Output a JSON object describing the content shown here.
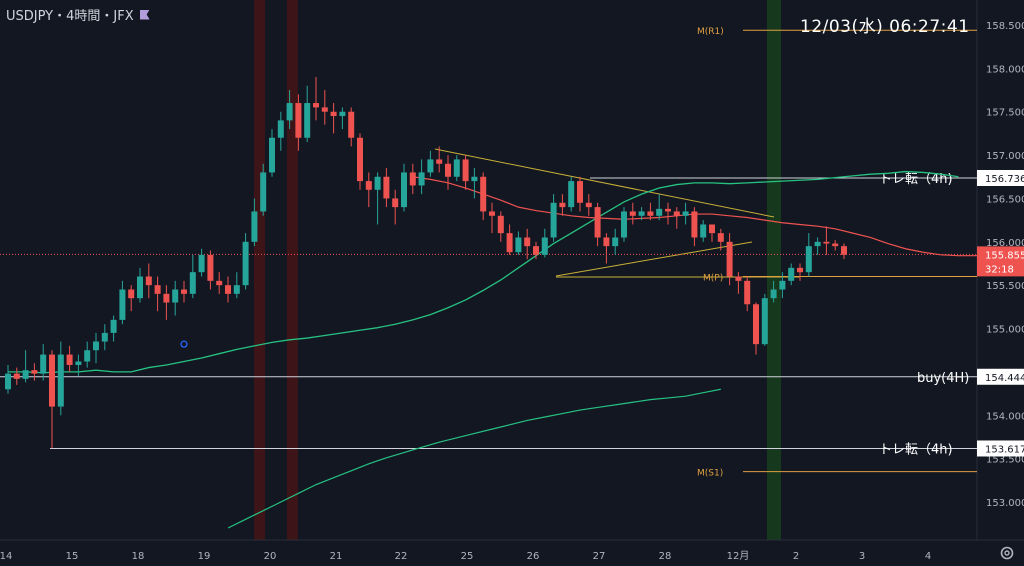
{
  "header": {
    "symbol_line": "USDJPY・4時間・JFX"
  },
  "clock": "12/03(水)   06:27:41",
  "colors": {
    "up": "#26a69a",
    "down": "#ef5350",
    "bg": "#131722",
    "grid": "#2a2e39",
    "text": "#b2b5be"
  },
  "chart_data": {
    "type": "candlestick",
    "y_ticks": [
      "158.500",
      "158.000",
      "157.500",
      "157.000",
      "156.500",
      "156.000",
      "155.500",
      "155.000",
      "154.500",
      "154.000",
      "153.500",
      "153.000"
    ],
    "x_ticks": [
      "14",
      "15",
      "18",
      "19",
      "20",
      "21",
      "22",
      "25",
      "26",
      "27",
      "28",
      "12月",
      "2",
      "3",
      "4"
    ],
    "ylim": [
      152.7,
      158.75
    ],
    "candles": [
      [
        154.3,
        154.48,
        154.25,
        154.58
      ],
      [
        154.48,
        154.42,
        154.35,
        154.55
      ],
      [
        154.42,
        154.52,
        154.38,
        154.75
      ],
      [
        154.52,
        154.48,
        154.4,
        154.6
      ],
      [
        154.48,
        154.7,
        154.4,
        154.82
      ],
      [
        154.7,
        154.1,
        153.62,
        154.75
      ],
      [
        154.1,
        154.7,
        154.0,
        154.85
      ],
      [
        154.7,
        154.58,
        154.5,
        154.8
      ],
      [
        154.58,
        154.62,
        154.45,
        154.7
      ],
      [
        154.62,
        154.75,
        154.55,
        154.85
      ],
      [
        154.75,
        154.85,
        154.6,
        154.95
      ],
      [
        154.85,
        154.95,
        154.75,
        155.05
      ],
      [
        154.95,
        155.1,
        154.85,
        155.15
      ],
      [
        155.1,
        155.45,
        155.05,
        155.55
      ],
      [
        155.45,
        155.35,
        155.2,
        155.5
      ],
      [
        155.35,
        155.6,
        155.3,
        155.7
      ],
      [
        155.6,
        155.5,
        155.35,
        155.75
      ],
      [
        155.5,
        155.4,
        155.2,
        155.6
      ],
      [
        155.4,
        155.3,
        155.1,
        155.5
      ],
      [
        155.3,
        155.45,
        155.15,
        155.55
      ],
      [
        155.45,
        155.4,
        155.3,
        155.55
      ],
      [
        155.4,
        155.65,
        155.35,
        155.85
      ],
      [
        155.65,
        155.85,
        155.6,
        155.92
      ],
      [
        155.85,
        155.55,
        155.45,
        155.9
      ],
      [
        155.55,
        155.5,
        155.4,
        155.65
      ],
      [
        155.5,
        155.4,
        155.3,
        155.6
      ],
      [
        155.4,
        155.5,
        155.35,
        155.65
      ],
      [
        155.5,
        156.0,
        155.45,
        156.1
      ],
      [
        156.0,
        156.35,
        155.95,
        156.5
      ],
      [
        156.35,
        156.8,
        156.3,
        156.9
      ],
      [
        156.8,
        157.2,
        156.75,
        157.3
      ],
      [
        157.2,
        157.4,
        157.05,
        157.5
      ],
      [
        157.4,
        157.6,
        157.3,
        157.75
      ],
      [
        157.6,
        157.2,
        157.05,
        157.7
      ],
      [
        157.2,
        157.6,
        157.15,
        157.8
      ],
      [
        157.6,
        157.55,
        157.4,
        157.9
      ],
      [
        157.55,
        157.5,
        157.35,
        157.75
      ],
      [
        157.5,
        157.45,
        157.25,
        157.6
      ],
      [
        157.45,
        157.5,
        157.3,
        157.55
      ],
      [
        157.5,
        157.2,
        157.1,
        157.55
      ],
      [
        157.2,
        156.7,
        156.6,
        157.25
      ],
      [
        156.7,
        156.6,
        156.4,
        156.8
      ],
      [
        156.6,
        156.75,
        156.2,
        156.8
      ],
      [
        156.75,
        156.5,
        156.4,
        156.85
      ],
      [
        156.5,
        156.4,
        156.2,
        156.6
      ],
      [
        156.4,
        156.8,
        156.35,
        156.9
      ],
      [
        156.8,
        156.65,
        156.55,
        156.9
      ],
      [
        156.65,
        156.8,
        156.55,
        156.95
      ],
      [
        156.8,
        156.95,
        156.75,
        157.05
      ],
      [
        156.95,
        156.9,
        156.8,
        157.1
      ],
      [
        156.9,
        156.75,
        156.6,
        157.0
      ],
      [
        156.75,
        156.95,
        156.7,
        157.0
      ],
      [
        156.95,
        156.7,
        156.6,
        157.0
      ],
      [
        156.7,
        156.75,
        156.5,
        156.85
      ],
      [
        156.75,
        156.35,
        156.25,
        156.8
      ],
      [
        156.35,
        156.3,
        156.1,
        156.45
      ],
      [
        156.3,
        156.1,
        156.0,
        156.35
      ],
      [
        156.1,
        155.88,
        155.85,
        156.2
      ],
      [
        155.88,
        156.05,
        155.85,
        156.12
      ],
      [
        156.05,
        155.95,
        155.8,
        156.15
      ],
      [
        155.95,
        155.85,
        155.8,
        156.0
      ],
      [
        155.85,
        156.05,
        155.82,
        156.15
      ],
      [
        156.05,
        156.45,
        156.0,
        156.55
      ],
      [
        156.45,
        156.4,
        156.3,
        156.55
      ],
      [
        156.4,
        156.7,
        156.35,
        156.75
      ],
      [
        156.7,
        156.45,
        156.35,
        156.75
      ],
      [
        156.45,
        156.4,
        156.3,
        156.55
      ],
      [
        156.4,
        156.05,
        155.95,
        156.45
      ],
      [
        156.05,
        155.95,
        155.75,
        156.1
      ],
      [
        155.95,
        156.05,
        155.85,
        156.15
      ],
      [
        156.05,
        156.35,
        156.0,
        156.4
      ],
      [
        156.35,
        156.3,
        156.2,
        156.45
      ],
      [
        156.3,
        156.35,
        156.25,
        156.4
      ],
      [
        156.35,
        156.3,
        156.25,
        156.45
      ],
      [
        156.3,
        156.38,
        156.25,
        156.55
      ],
      [
        156.38,
        156.35,
        156.2,
        156.45
      ],
      [
        156.35,
        156.3,
        156.15,
        156.4
      ],
      [
        156.3,
        156.35,
        156.2,
        156.45
      ],
      [
        156.35,
        156.05,
        155.95,
        156.4
      ],
      [
        156.05,
        156.2,
        156.0,
        156.25
      ],
      [
        156.2,
        156.1,
        156.0,
        156.2
      ],
      [
        156.1,
        156.0,
        155.9,
        156.15
      ],
      [
        156.0,
        155.6,
        155.5,
        156.1
      ],
      [
        155.6,
        155.55,
        155.4,
        155.65
      ],
      [
        155.55,
        155.28,
        155.2,
        155.6
      ],
      [
        155.28,
        154.82,
        154.7,
        155.3
      ],
      [
        154.82,
        155.35,
        154.8,
        155.4
      ],
      [
        155.35,
        155.45,
        155.3,
        155.55
      ],
      [
        155.45,
        155.55,
        155.35,
        155.65
      ],
      [
        155.55,
        155.7,
        155.5,
        155.75
      ],
      [
        155.7,
        155.65,
        155.55,
        155.75
      ],
      [
        155.65,
        155.95,
        155.6,
        156.1
      ],
      [
        155.95,
        156.0,
        155.85,
        156.05
      ],
      [
        156.0,
        155.98,
        155.85,
        156.18
      ],
      [
        155.98,
        155.95,
        155.9,
        156.02
      ],
      [
        155.95,
        155.85,
        155.8,
        155.98
      ]
    ],
    "ema_short": [
      154.5,
      154.5,
      154.49,
      154.5,
      154.5,
      154.52,
      154.5,
      154.5,
      154.55,
      154.58,
      154.62,
      154.66,
      154.71,
      154.76,
      154.8,
      154.84,
      154.87,
      154.89,
      154.92,
      154.95,
      154.98,
      155.01,
      155.05,
      155.1,
      155.16,
      155.24,
      155.33,
      155.44,
      155.56,
      155.7,
      155.84,
      155.98,
      156.1,
      156.22,
      156.34,
      156.46,
      156.55,
      156.62,
      156.66,
      156.68,
      156.68,
      156.67,
      156.68,
      156.69,
      156.7,
      156.71,
      156.72,
      156.74,
      156.76,
      156.78,
      156.79,
      156.81,
      156.8,
      156.78,
      156.75
    ],
    "ema_red": [
      156.75,
      156.72,
      156.68,
      156.62,
      156.55,
      156.48,
      156.4,
      156.36,
      156.33,
      156.3,
      156.28,
      156.27,
      156.26,
      156.27,
      156.28,
      156.3,
      156.32,
      156.32,
      156.3,
      156.28,
      156.25,
      156.22,
      156.2,
      156.18,
      156.15,
      156.1,
      156.05,
      155.98,
      155.92,
      155.88,
      155.85,
      155.84,
      155.84,
      155.86,
      155.88,
      155.9,
      155.92,
      155.94
    ],
    "ema_long": [
      152.7,
      152.8,
      152.9,
      153.0,
      153.1,
      153.2,
      153.28,
      153.36,
      153.44,
      153.51,
      153.57,
      153.63,
      153.69,
      153.74,
      153.79,
      153.84,
      153.89,
      153.94,
      153.98,
      154.02,
      154.06,
      154.09,
      154.12,
      154.15,
      154.18,
      154.2,
      154.22,
      154.26,
      154.3
    ],
    "levels": [
      {
        "name": "M(R1)",
        "price": 158.44
      },
      {
        "name": "トレ転（4h)",
        "price": 156.736
      },
      {
        "name": "M(P)",
        "price": 155.6
      },
      {
        "name": "buy(4H)",
        "price": 154.444
      },
      {
        "name": "トレ転（4h)",
        "price": 153.617
      },
      {
        "name": "M(S1)",
        "price": 153.35
      }
    ],
    "price_badges": [
      {
        "label": "156.736",
        "price": 156.736
      },
      {
        "label": "154.444",
        "price": 154.444
      },
      {
        "label": "153.617",
        "price": 153.617
      }
    ],
    "current_price": {
      "price": 155.855,
      "label": "155.855",
      "countdown": "32:18"
    }
  }
}
